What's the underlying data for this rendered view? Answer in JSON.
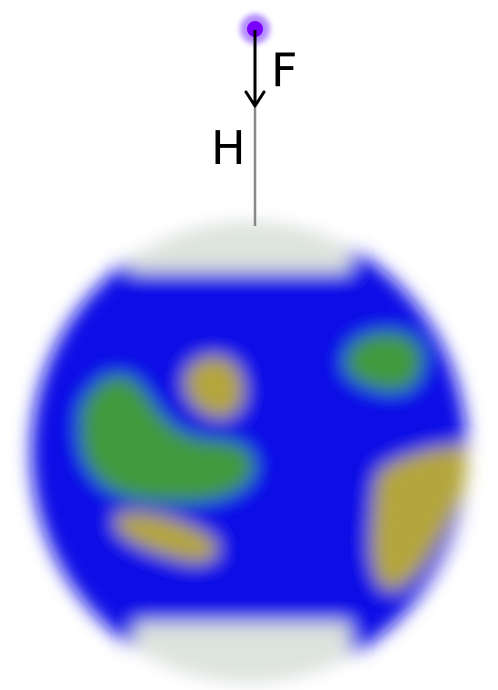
{
  "labels": {
    "force": "F",
    "height": "H"
  },
  "colors": {
    "ocean": "#1010e6",
    "land_green": "#3f9a3c",
    "land_yellow": "#b4a63c",
    "ice": "#dde3dd",
    "satellite": "#7a00ff",
    "line": "#888888",
    "arrow": "#000000"
  }
}
